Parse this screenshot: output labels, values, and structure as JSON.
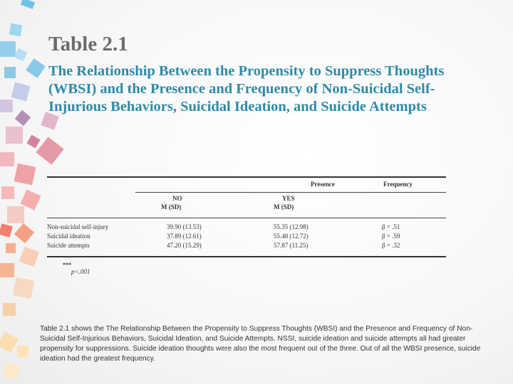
{
  "slide": {
    "table_number": "Table 2.1",
    "title": "The Relationship Between the Propensity to Suppress Thoughts (WBSI) and the Presence and Frequency of Non-Suicidal Self-Injurious Behaviors, Suicidal Ideation, and Suicide Attempts"
  },
  "table": {
    "group_header_presence": "Presence",
    "group_header_frequency": "Frequency",
    "col_no": "NO",
    "col_no_sub": "M (SD)",
    "col_yes": "YES",
    "col_yes_sub": "M (SD)",
    "rows": [
      {
        "label": "Non-suicidal self-injury",
        "no": "39.90 (13.53)",
        "yes": "55.35 (12.98)",
        "freq": "β = .51"
      },
      {
        "label": "Suicidal ideation",
        "no": "37.89 (12.61)",
        "yes": "55.48 (12.72)",
        "freq": "β = .59"
      },
      {
        "label": "Suicide attempts",
        "no": "47.20 (15.29)",
        "yes": "57.87 (11.25)",
        "freq": "β = .32"
      }
    ],
    "note_stars": "***",
    "note_p": "p<.001"
  },
  "caption": {
    "lead": "Table 2.1 shows",
    "text": " the The Relationship Between the Propensity to Suppress Thoughts (WBSI) and the Presence and Frequency of Non-Suicidal Self-Injurious Behaviors, Suicidal Ideation, and Suicide Attempts. NSSI, suicide ideation and suicide attempts all  had greater propensity for suppressions. Suicide ideation thoughts were also the most frequent out of the three. Out of all the WBSI presence, suicide ideation had the greatest frequency."
  },
  "colors": {
    "title_accent": "#2e8aa8",
    "table_number_gray": "#6b6b6b"
  }
}
